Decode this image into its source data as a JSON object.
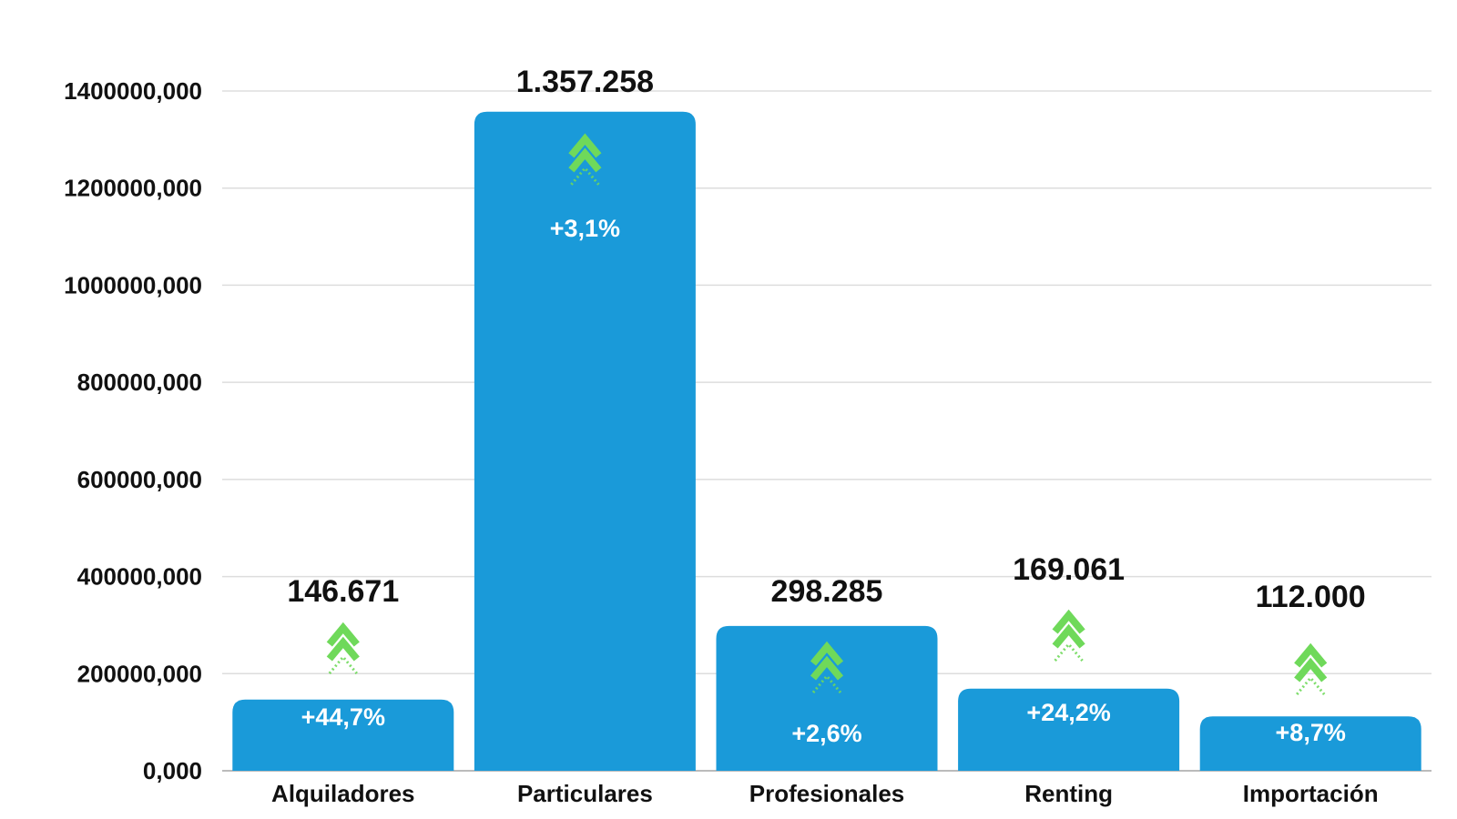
{
  "chart_data": {
    "type": "bar",
    "title": "",
    "xlabel": "",
    "ylabel": "",
    "ylim": [
      0,
      1400000
    ],
    "y_ticks": [
      0,
      200000,
      400000,
      600000,
      800000,
      1000000,
      1200000,
      1400000
    ],
    "y_tick_labels": [
      "0,000",
      "200000,000",
      "400000,000",
      "600000,000",
      "800000,000",
      "1000000,000",
      "1200000,000",
      "1400000,000"
    ],
    "grid": true,
    "categories": [
      "Alquiladores",
      "Particulares",
      "Profesionales",
      "Renting",
      "Importación"
    ],
    "values": [
      146671,
      1357258,
      298285,
      169061,
      112000
    ],
    "value_labels": [
      "146.671",
      "1.357.258",
      "298.285",
      "169.061",
      "112.000"
    ],
    "change_labels": [
      "+44,7%",
      "+3,1%",
      "+2,6%",
      "+24,2%",
      "+8,7%"
    ],
    "trend_icons": [
      "up-arrow-icon",
      "up-arrow-icon",
      "up-arrow-icon",
      "up-arrow-icon",
      "up-arrow-icon"
    ],
    "colors": {
      "bar": "#1a9ad9",
      "arrow": "#6fd95a",
      "grid": "#dddddd",
      "axis": "#bbbbbb",
      "text": "#111111"
    }
  }
}
